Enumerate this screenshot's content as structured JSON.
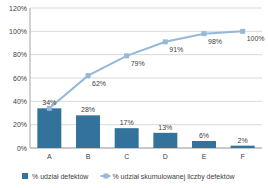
{
  "chart_data": {
    "type": "bar",
    "categories": [
      "A",
      "B",
      "C",
      "D",
      "E",
      "F"
    ],
    "series": [
      {
        "name": "% udział defektów",
        "type": "bar",
        "color": "#33729b",
        "values": [
          34,
          28,
          17,
          13,
          6,
          2
        ],
        "value_labels": [
          "34%",
          "28%",
          "17%",
          "13%",
          "6%",
          "2%"
        ]
      },
      {
        "name": "% udział skumulowanej liczby defektów",
        "type": "line",
        "color": "#95b8d9",
        "marker": "square",
        "values": [
          34,
          62,
          79,
          91,
          98,
          100
        ],
        "value_labels": [
          null,
          "62%",
          "79%",
          "91%",
          "98%",
          "100%"
        ]
      }
    ],
    "ylim": [
      0,
      120
    ],
    "yticks": [
      {
        "value": 0,
        "label": "0%"
      },
      {
        "value": 20,
        "label": "20%"
      },
      {
        "value": 40,
        "label": "40%"
      },
      {
        "value": 60,
        "label": "60%"
      },
      {
        "value": 80,
        "label": "80%"
      },
      {
        "value": 100,
        "label": "100%"
      },
      {
        "value": 120,
        "label": "120%"
      }
    ],
    "grid": true,
    "data_labels": true,
    "legend": "bottom"
  }
}
